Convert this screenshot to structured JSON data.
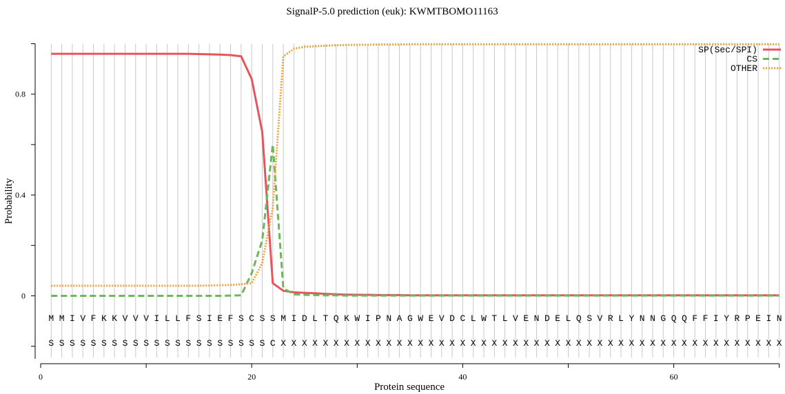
{
  "chart_data": {
    "type": "line",
    "title": "SignalP-5.0 prediction (euk):  KWMTBOMO11163",
    "xlabel": "Protein sequence",
    "ylabel": "Probability",
    "xlim": [
      0,
      70
    ],
    "ylim": [
      -0.25,
      1.0
    ],
    "x_ticks": [
      0,
      20,
      40,
      60
    ],
    "x_minor_ticks": [
      10,
      30,
      50,
      70
    ],
    "y_ticks": [
      0,
      0.4,
      0.8
    ],
    "y_tick_labels": [
      "0",
      "0.4",
      "0.8"
    ],
    "y_minor_ticks": [
      0.2,
      0.6,
      1.0,
      -0.2
    ],
    "legend_position": "top-right",
    "sequence": [
      "M",
      "M",
      "I",
      "V",
      "F",
      "K",
      "K",
      "V",
      "V",
      "V",
      "I",
      "L",
      "L",
      "F",
      "S",
      "I",
      "E",
      "F",
      "S",
      "C",
      "S",
      "S",
      "M",
      "I",
      "D",
      "L",
      "T",
      "Q",
      "K",
      "W",
      "I",
      "P",
      "N",
      "A",
      "G",
      "W",
      "E",
      "V",
      "D",
      "C",
      "L",
      "W",
      "T",
      "L",
      "V",
      "E",
      "N",
      "D",
      "E",
      "L",
      "Q",
      "S",
      "V",
      "R",
      "L",
      "Y",
      "N",
      "N",
      "G",
      "Q",
      "Q",
      "F",
      "F",
      "I",
      "Y",
      "R",
      "P",
      "E",
      "I",
      "N"
    ],
    "annotation": [
      "S",
      "S",
      "S",
      "S",
      "S",
      "S",
      "S",
      "S",
      "S",
      "S",
      "S",
      "S",
      "S",
      "S",
      "S",
      "S",
      "S",
      "S",
      "S",
      "S",
      "S",
      "C",
      "X",
      "X",
      "X",
      "X",
      "X",
      "X",
      "X",
      "X",
      "X",
      "X",
      "X",
      "X",
      "X",
      "X",
      "X",
      "X",
      "X",
      "X",
      "X",
      "X",
      "X",
      "X",
      "X",
      "X",
      "X",
      "X",
      "X",
      "X",
      "X",
      "X",
      "X",
      "X",
      "X",
      "X",
      "X",
      "X",
      "X",
      "X",
      "X",
      "X",
      "X",
      "X",
      "X",
      "X",
      "X",
      "X",
      "X",
      "X"
    ],
    "series": [
      {
        "name": "SP(Sec/SPI)",
        "color": "#e4555e",
        "style": "solid",
        "values": [
          0.96,
          0.96,
          0.96,
          0.96,
          0.96,
          0.96,
          0.96,
          0.96,
          0.96,
          0.96,
          0.96,
          0.96,
          0.96,
          0.96,
          0.959,
          0.958,
          0.957,
          0.955,
          0.95,
          0.86,
          0.65,
          0.05,
          0.02,
          0.014,
          0.012,
          0.01,
          0.008,
          0.006,
          0.005,
          0.004,
          0.004,
          0.003,
          0.003,
          0.003,
          0.002,
          0.002,
          0.002,
          0.002,
          0.002,
          0.002,
          0.002,
          0.002,
          0.002,
          0.002,
          0.002,
          0.002,
          0.002,
          0.002,
          0.002,
          0.002,
          0.002,
          0.002,
          0.002,
          0.002,
          0.002,
          0.002,
          0.002,
          0.002,
          0.002,
          0.002,
          0.002,
          0.002,
          0.002,
          0.002,
          0.002,
          0.002,
          0.002,
          0.002,
          0.002,
          0.002
        ]
      },
      {
        "name": "CS",
        "color": "#6cb65c",
        "style": "dashed",
        "values": [
          0,
          0,
          0,
          0,
          0,
          0,
          0,
          0,
          0,
          0,
          0,
          0,
          0,
          0,
          0,
          0,
          0,
          0.001,
          0.002,
          0.09,
          0.22,
          0.6,
          0.03,
          0.006,
          0.004,
          0.003,
          0.002,
          0.002,
          0.001,
          0.001,
          0.001,
          0.001,
          0.001,
          0.001,
          0.001,
          0.001,
          0.001,
          0.001,
          0.001,
          0.001,
          0.001,
          0.001,
          0.001,
          0.001,
          0.001,
          0.001,
          0.001,
          0.001,
          0.001,
          0.001,
          0.001,
          0.001,
          0.001,
          0.001,
          0.001,
          0.001,
          0.001,
          0.001,
          0.001,
          0.001,
          0.001,
          0.001,
          0.001,
          0.001,
          0.001,
          0.001,
          0.001,
          0.001,
          0.001,
          0.001
        ]
      },
      {
        "name": "OTHER",
        "color": "#f0a040",
        "style": "dotted",
        "values": [
          0.04,
          0.04,
          0.04,
          0.04,
          0.04,
          0.04,
          0.04,
          0.04,
          0.04,
          0.04,
          0.04,
          0.04,
          0.04,
          0.04,
          0.04,
          0.041,
          0.042,
          0.043,
          0.046,
          0.05,
          0.13,
          0.35,
          0.95,
          0.98,
          0.988,
          0.99,
          0.992,
          0.994,
          0.995,
          0.996,
          0.996,
          0.997,
          0.997,
          0.997,
          0.998,
          0.998,
          0.998,
          0.998,
          0.998,
          0.998,
          0.998,
          0.998,
          0.998,
          0.998,
          0.998,
          0.998,
          0.998,
          0.998,
          0.998,
          0.998,
          0.998,
          0.998,
          0.998,
          0.998,
          0.998,
          0.998,
          0.998,
          0.998,
          0.998,
          0.998,
          0.998,
          0.998,
          0.998,
          0.998,
          0.998,
          0.998,
          0.998,
          0.998,
          0.998,
          0.998
        ]
      }
    ]
  }
}
